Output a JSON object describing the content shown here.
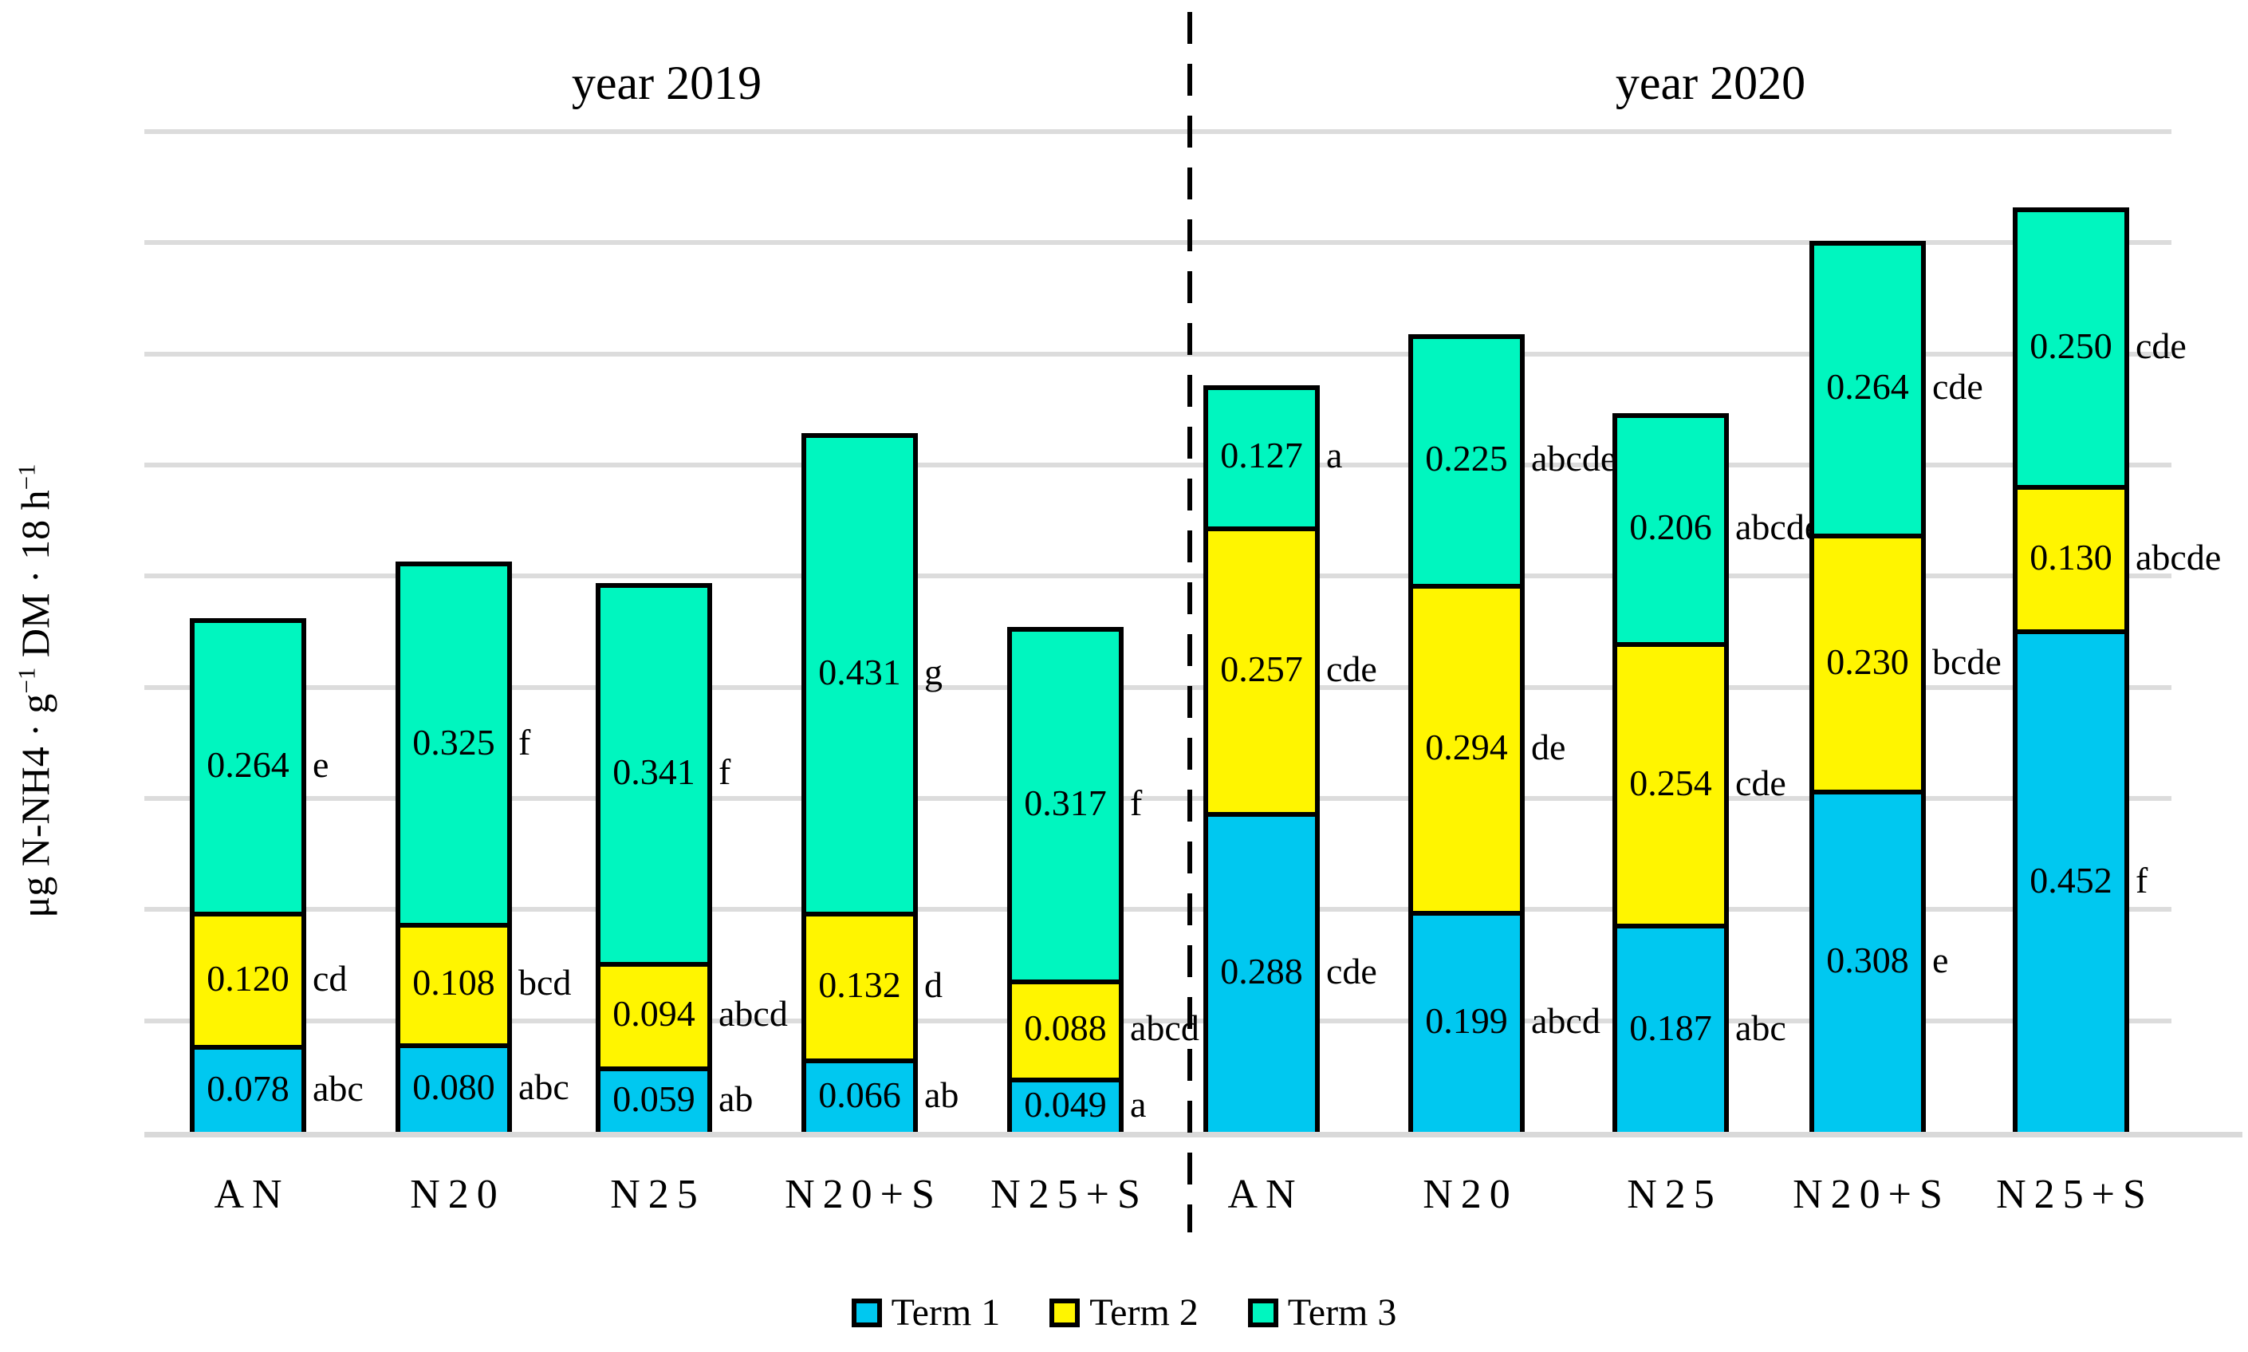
{
  "chart_data": {
    "type": "bar",
    "stacked": true,
    "grid": true,
    "legend_position": "bottom",
    "ylim": [
      0,
      0.9
    ],
    "gridline_step": 0.1,
    "y_tick_labels_shown": false,
    "ylabel": "μg N-NH4 · g−1 DM · 18 h−1",
    "ylabel_parts": [
      {
        "text": "μg N-NH4 · g"
      },
      {
        "text": "−1",
        "sup": true
      },
      {
        "text": " DM · 18 h"
      },
      {
        "text": "−1",
        "sup": true
      }
    ],
    "series": [
      {
        "name": "Term 1",
        "color": "#00C8F0"
      },
      {
        "name": "Term 2",
        "color": "#FFF500"
      },
      {
        "name": "Term 3",
        "color": "#00F6BF"
      }
    ],
    "groups": [
      {
        "title": "year 2019",
        "bars": [
          {
            "category": "AN",
            "segments": [
              {
                "series": "Term 1",
                "value": 0.078,
                "label": "0.078",
                "letter": "abc"
              },
              {
                "series": "Term 2",
                "value": 0.12,
                "label": "0.120",
                "letter": "cd"
              },
              {
                "series": "Term 3",
                "value": 0.264,
                "label": "0.264",
                "letter": "e"
              }
            ]
          },
          {
            "category": "N20",
            "segments": [
              {
                "series": "Term 1",
                "value": 0.08,
                "label": "0.080",
                "letter": "abc"
              },
              {
                "series": "Term 2",
                "value": 0.108,
                "label": "0.108",
                "letter": "bcd"
              },
              {
                "series": "Term 3",
                "value": 0.325,
                "label": "0.325",
                "letter": "f"
              }
            ]
          },
          {
            "category": "N25",
            "segments": [
              {
                "series": "Term 1",
                "value": 0.059,
                "label": "0.059",
                "letter": "ab"
              },
              {
                "series": "Term 2",
                "value": 0.094,
                "label": "0.094",
                "letter": "abcd"
              },
              {
                "series": "Term 3",
                "value": 0.341,
                "label": "0.341",
                "letter": "f"
              }
            ]
          },
          {
            "category": "N20+S",
            "segments": [
              {
                "series": "Term 1",
                "value": 0.066,
                "label": "0.066",
                "letter": "ab"
              },
              {
                "series": "Term 2",
                "value": 0.132,
                "label": "0.132",
                "letter": "d"
              },
              {
                "series": "Term 3",
                "value": 0.431,
                "label": "0.431",
                "letter": "g"
              }
            ]
          },
          {
            "category": "N25+S",
            "segments": [
              {
                "series": "Term 1",
                "value": 0.049,
                "label": "0.049",
                "letter": "a"
              },
              {
                "series": "Term 2",
                "value": 0.088,
                "label": "0.088",
                "letter": "abcd"
              },
              {
                "series": "Term 3",
                "value": 0.317,
                "label": "0.317",
                "letter": "f"
              }
            ]
          }
        ]
      },
      {
        "title": "year 2020",
        "bars": [
          {
            "category": "AN",
            "segments": [
              {
                "series": "Term 1",
                "value": 0.288,
                "label": "0.288",
                "letter": "cde"
              },
              {
                "series": "Term 2",
                "value": 0.257,
                "label": "0.257",
                "letter": "cde"
              },
              {
                "series": "Term 3",
                "value": 0.127,
                "label": "0.127",
                "letter": "a"
              }
            ]
          },
          {
            "category": "N20",
            "segments": [
              {
                "series": "Term 1",
                "value": 0.199,
                "label": "0.199",
                "letter": "abcd"
              },
              {
                "series": "Term 2",
                "value": 0.294,
                "label": "0.294",
                "letter": "de"
              },
              {
                "series": "Term 3",
                "value": 0.225,
                "label": "0.225",
                "letter": "abcde"
              }
            ]
          },
          {
            "category": "N25",
            "segments": [
              {
                "series": "Term 1",
                "value": 0.187,
                "label": "0.187",
                "letter": "abc"
              },
              {
                "series": "Term 2",
                "value": 0.254,
                "label": "0.254",
                "letter": "cde"
              },
              {
                "series": "Term 3",
                "value": 0.206,
                "label": "0.206",
                "letter": "abcde"
              }
            ]
          },
          {
            "category": "N20+S",
            "segments": [
              {
                "series": "Term 1",
                "value": 0.308,
                "label": "0.308",
                "letter": "e"
              },
              {
                "series": "Term 2",
                "value": 0.23,
                "label": "0.230",
                "letter": "bcde"
              },
              {
                "series": "Term 3",
                "value": 0.264,
                "label": "0.264",
                "letter": "cde"
              }
            ]
          },
          {
            "category": "N25+S",
            "segments": [
              {
                "series": "Term 1",
                "value": 0.452,
                "label": "0.452",
                "letter": "f"
              },
              {
                "series": "Term 2",
                "value": 0.13,
                "label": "0.130",
                "letter": "abcde"
              },
              {
                "series": "Term 3",
                "value": 0.25,
                "label": "0.250",
                "letter": "cde"
              }
            ]
          }
        ]
      }
    ],
    "legend": [
      {
        "label": "Term 1"
      },
      {
        "label": "Term 2"
      },
      {
        "label": "Term 3"
      }
    ]
  }
}
